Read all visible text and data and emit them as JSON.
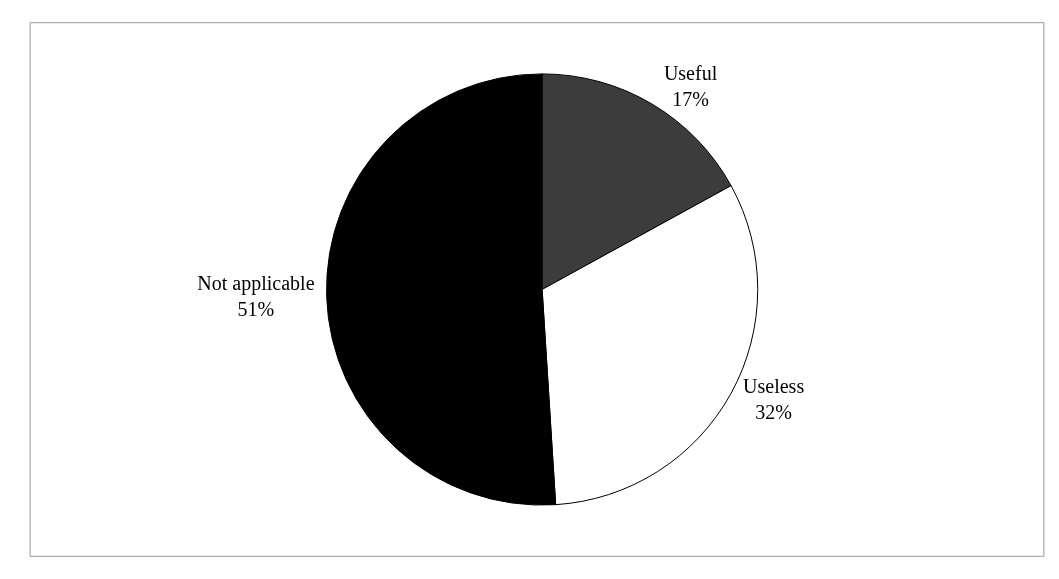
{
  "chart_data": {
    "type": "pie",
    "categories": [
      "Useful",
      "Useless",
      "Not applicable"
    ],
    "values": [
      17,
      32,
      51
    ],
    "value_labels": [
      "17%",
      "32%",
      "51%"
    ],
    "colors": [
      "#3c3c3c",
      "#ffffff",
      "#000000"
    ],
    "legend": false
  }
}
